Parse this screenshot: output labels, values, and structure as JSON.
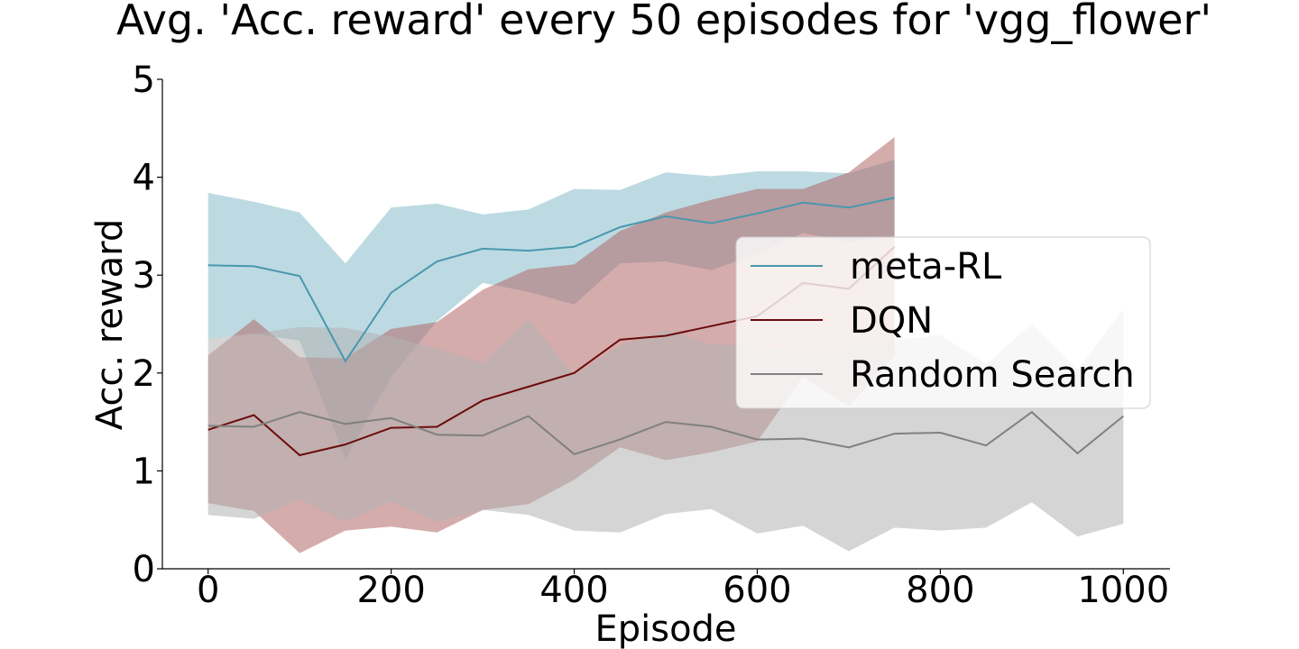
{
  "chart_data": {
    "type": "line",
    "title": "Avg. 'Acc. reward' every 50 episodes for 'vgg_flower'",
    "xlabel": "Episode",
    "ylabel": "Acc. reward",
    "xlim": [
      -50,
      1050
    ],
    "ylim": [
      0,
      5
    ],
    "xticks": [
      0,
      200,
      400,
      600,
      800,
      1000
    ],
    "yticks": [
      0,
      1,
      2,
      3,
      4,
      5
    ],
    "grid": false,
    "legend_position": "center-right",
    "series": [
      {
        "name": "meta-RL",
        "color": "#4a97ae",
        "band_color": "#86bccb",
        "x": [
          0,
          50,
          100,
          150,
          200,
          250,
          300,
          350,
          400,
          450,
          500,
          550,
          600,
          650,
          700,
          750
        ],
        "values": [
          3.1,
          3.09,
          2.99,
          2.12,
          2.82,
          3.14,
          3.27,
          3.25,
          3.29,
          3.49,
          3.6,
          3.53,
          3.63,
          3.74,
          3.69,
          3.79
        ],
        "upper": [
          3.84,
          3.75,
          3.64,
          3.12,
          3.69,
          3.73,
          3.62,
          3.67,
          3.88,
          3.87,
          4.05,
          4.01,
          4.06,
          4.06,
          4.04,
          4.18
        ],
        "lower": [
          2.35,
          2.4,
          2.33,
          1.12,
          1.96,
          2.53,
          2.92,
          2.83,
          2.7,
          3.12,
          3.14,
          3.05,
          3.22,
          3.43,
          3.34,
          3.4
        ]
      },
      {
        "name": "DQN",
        "color": "#6b0c0c",
        "band_color": "#b16868",
        "x": [
          0,
          50,
          100,
          150,
          200,
          250,
          300,
          350,
          400,
          450,
          500,
          550,
          600,
          650,
          700,
          750
        ],
        "values": [
          1.42,
          1.57,
          1.16,
          1.27,
          1.44,
          1.45,
          1.72,
          1.86,
          2.0,
          2.34,
          2.38,
          2.48,
          2.58,
          2.92,
          2.86,
          3.29
        ],
        "upper": [
          2.18,
          2.55,
          2.16,
          2.15,
          2.45,
          2.52,
          2.85,
          3.06,
          3.11,
          3.45,
          3.64,
          3.77,
          3.88,
          3.88,
          4.05,
          4.41
        ],
        "lower": [
          0.67,
          0.59,
          0.16,
          0.39,
          0.43,
          0.37,
          0.6,
          0.66,
          0.91,
          1.24,
          1.11,
          1.19,
          1.3,
          1.96,
          1.66,
          2.17
        ]
      },
      {
        "name": "Random Search",
        "color": "#808080",
        "band_color": "#b3b3b3",
        "x": [
          0,
          50,
          100,
          150,
          200,
          250,
          300,
          350,
          400,
          450,
          500,
          550,
          600,
          650,
          700,
          750,
          800,
          850,
          900,
          950,
          1000
        ],
        "values": [
          1.46,
          1.45,
          1.6,
          1.48,
          1.54,
          1.37,
          1.36,
          1.56,
          1.17,
          1.32,
          1.5,
          1.45,
          1.32,
          1.33,
          1.24,
          1.38,
          1.39,
          1.26,
          1.6,
          1.18,
          1.56
        ],
        "upper": [
          2.35,
          2.4,
          2.47,
          2.46,
          2.37,
          2.25,
          2.1,
          2.55,
          1.98,
          2.28,
          2.44,
          2.29,
          2.28,
          2.22,
          2.29,
          2.33,
          2.39,
          2.09,
          2.5,
          2.04,
          2.65
        ],
        "lower": [
          0.55,
          0.51,
          0.71,
          0.48,
          0.69,
          0.48,
          0.6,
          0.55,
          0.39,
          0.37,
          0.56,
          0.61,
          0.36,
          0.44,
          0.18,
          0.42,
          0.39,
          0.42,
          0.68,
          0.33,
          0.46
        ]
      }
    ]
  }
}
